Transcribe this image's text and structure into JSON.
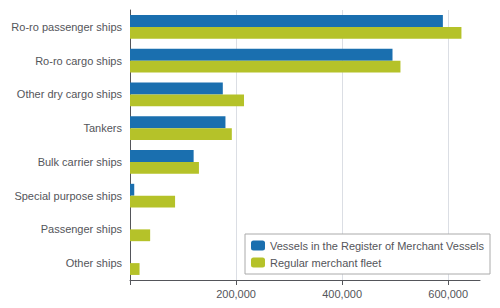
{
  "chart_data": {
    "type": "bar",
    "orientation": "horizontal",
    "categories": [
      "Ro-ro passenger ships",
      "Ro-ro cargo ships",
      "Other dry cargo ships",
      "Tankers",
      "Bulk carrier ships",
      "Special purpose ships",
      "Passenger ships",
      "Other ships"
    ],
    "series": [
      {
        "name": "Vessels in the Register of Merchant Vessels",
        "color": "#1a6faf",
        "values": [
          590000,
          495000,
          175000,
          180000,
          120000,
          8000,
          0,
          0
        ]
      },
      {
        "name": "Regular merchant fleet",
        "color": "#b5c229",
        "values": [
          625000,
          510000,
          215000,
          192000,
          130000,
          85000,
          38000,
          18000
        ]
      }
    ],
    "xlim": [
      0,
      660000
    ],
    "xticks": [
      {
        "value": 0,
        "label": ""
      },
      {
        "value": 200000,
        "label": "200,000"
      },
      {
        "value": 400000,
        "label": "400,000"
      },
      {
        "value": 600000,
        "label": "600,000"
      }
    ],
    "grid": true,
    "legend": "lower right"
  }
}
